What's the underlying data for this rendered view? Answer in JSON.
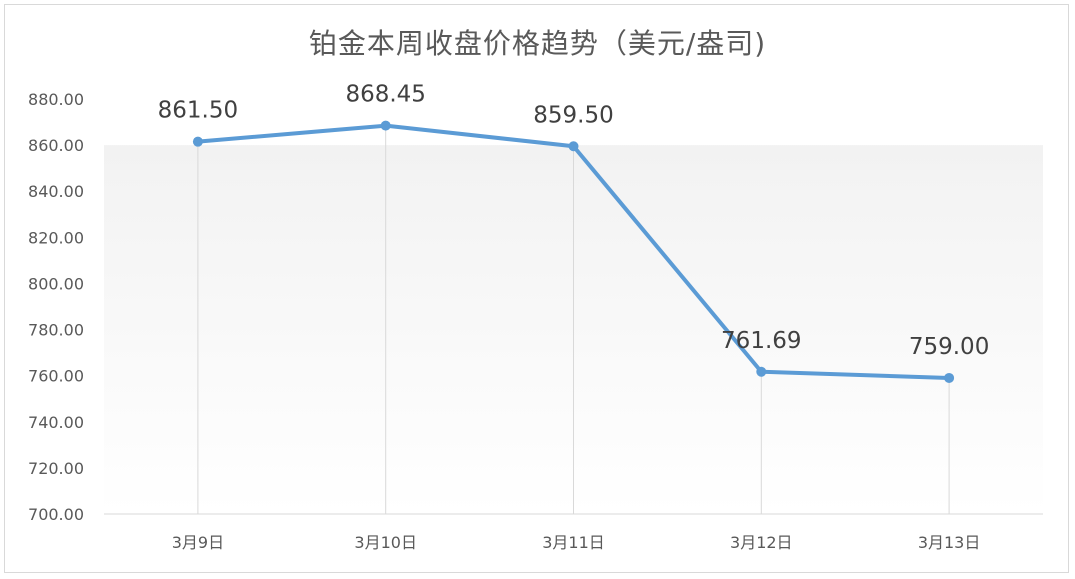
{
  "chart_data": {
    "type": "line",
    "title": "铂金本周收盘价格趋势（美元/盎司)",
    "xlabel": "",
    "ylabel": "",
    "categories": [
      "3月9日",
      "3月10日",
      "3月11日",
      "3月12日",
      "3月13日"
    ],
    "series": [
      {
        "values": [
          861.5,
          868.45,
          859.5,
          761.69,
          759.0
        ],
        "data_labels": [
          "861.50",
          "868.45",
          "859.50",
          "761.69",
          "759.00"
        ],
        "color": "#5b9bd5"
      }
    ],
    "ylim": [
      700,
      880
    ],
    "ytick_step": 20,
    "yticks": [
      "700.00",
      "720.00",
      "740.00",
      "760.00",
      "780.00",
      "800.00",
      "820.00",
      "840.00",
      "860.00",
      "880.00"
    ],
    "grid": "vertical drop lines",
    "legend": "none"
  }
}
